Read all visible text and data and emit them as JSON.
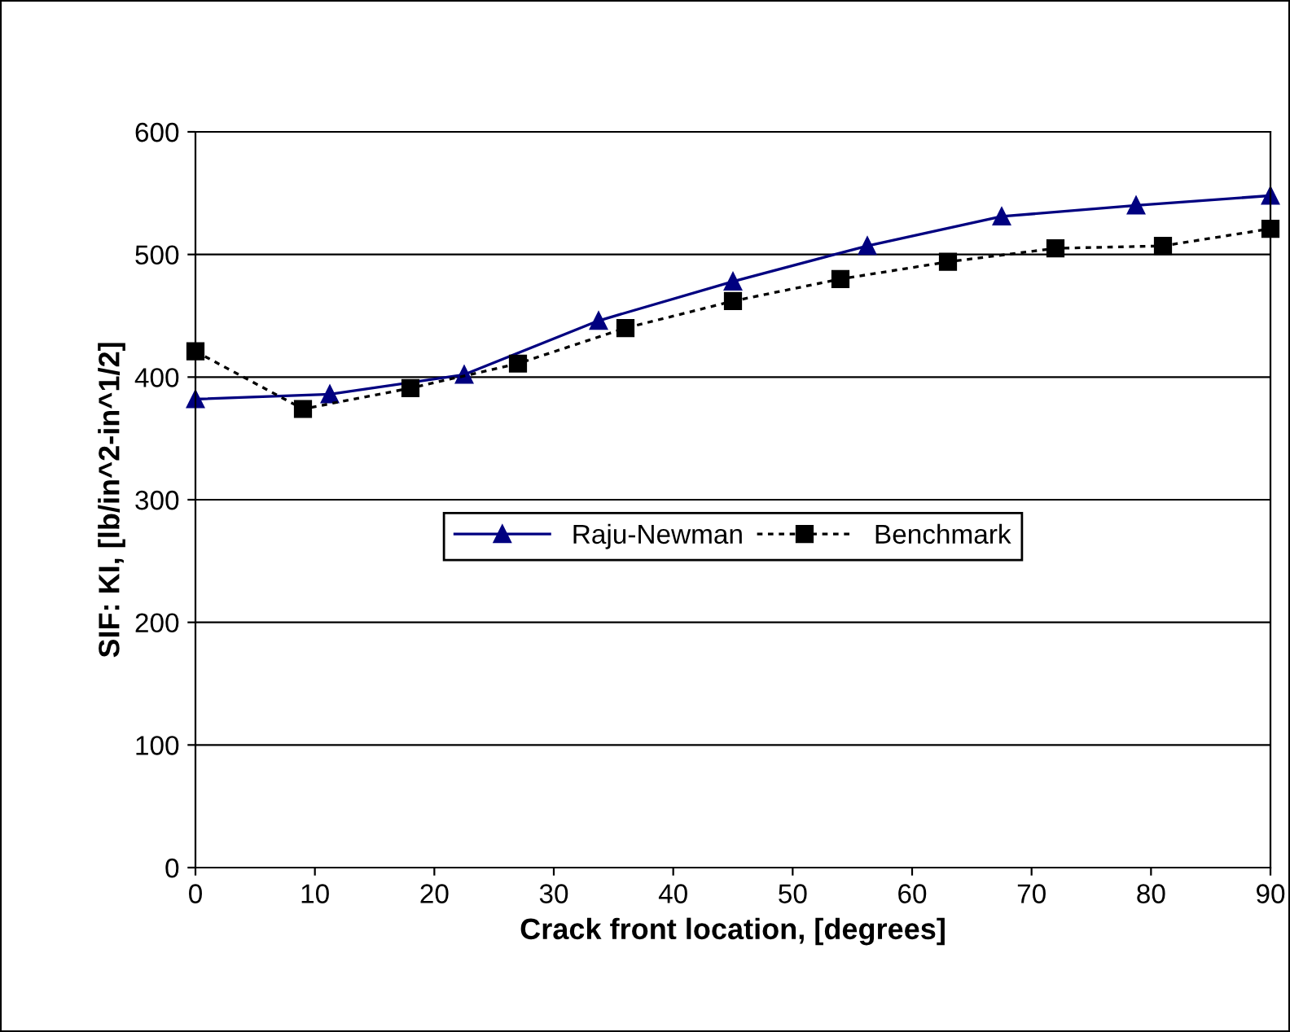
{
  "chart_data": {
    "type": "line",
    "xlabel": "Crack front location, [degrees]",
    "ylabel": "SIF: KI, [lb/in^2-in^1/2]",
    "xlim": [
      0,
      90
    ],
    "xticks": [
      0,
      10,
      20,
      30,
      40,
      50,
      60,
      70,
      80,
      90
    ],
    "ylim": [
      0,
      600
    ],
    "yticks": [
      0,
      100,
      200,
      300,
      400,
      500,
      600
    ],
    "grid": "y",
    "legend": "center",
    "series": [
      {
        "name": "Raju-Newman",
        "color": "#000080",
        "marker": "triangle",
        "line_style": "solid",
        "x": [
          0,
          11.25,
          22.5,
          33.75,
          45,
          56.25,
          67.5,
          78.75,
          90
        ],
        "values": [
          382,
          386,
          402,
          446,
          478,
          507,
          531,
          540,
          548
        ]
      },
      {
        "name": "Benchmark",
        "color": "#000000",
        "marker": "square",
        "line_style": "dotted",
        "x": [
          0,
          9,
          18,
          27,
          36,
          45,
          54,
          63,
          72,
          81,
          90
        ],
        "values": [
          421,
          374,
          391,
          411,
          440,
          462,
          480,
          494,
          505,
          507,
          521
        ]
      }
    ]
  }
}
